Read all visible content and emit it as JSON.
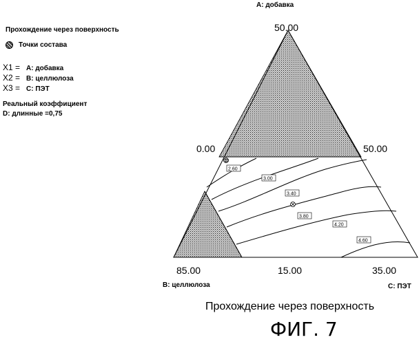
{
  "chart_data": {
    "type": "ternary-contour",
    "legend": {
      "title": "Прохождение через поверхность",
      "marker_label": "Точки состава"
    },
    "variables": [
      {
        "key": "X1 =",
        "value": "A: добавка"
      },
      {
        "key": "X2 =",
        "value": "B: целлюлоза"
      },
      {
        "key": "X3 =",
        "value": "C: ПЭТ"
      }
    ],
    "coefficient_title": "Реальный коэффициент",
    "coefficient_value": "D: длинные =0,75",
    "vertex_labels": {
      "top": "A: добавка",
      "left": "B: целлюлоза",
      "right": "C: ПЭТ"
    },
    "tick_labels": {
      "top": "50.00",
      "mid_left": "0.00",
      "mid_right": "50.00",
      "bottom_left": "85.00",
      "bottom_mid": "15.00",
      "bottom_right": "35.00"
    },
    "contour_levels": [
      "2.60",
      "3.00",
      "3.40",
      "3.80",
      "4.20",
      "4.60"
    ],
    "caption": "Прохождение через поверхность",
    "figure_label": "ФИГ. 7"
  }
}
